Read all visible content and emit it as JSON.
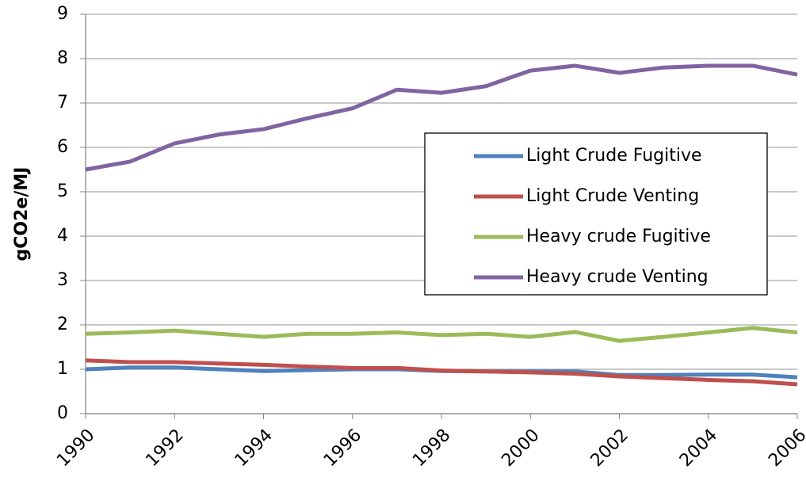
{
  "chart_data": {
    "type": "line",
    "y_label": "gCO2e/MJ",
    "x": [
      1990,
      1991,
      1992,
      1993,
      1994,
      1995,
      1996,
      1997,
      1998,
      1999,
      2000,
      2001,
      2002,
      2003,
      2004,
      2005,
      2006
    ],
    "xlim": [
      1990,
      2006
    ],
    "xticks": [
      1990,
      1992,
      1994,
      1996,
      1998,
      2000,
      2002,
      2004,
      2006
    ],
    "ylim": [
      0,
      9
    ],
    "yticks": [
      0,
      1,
      2,
      3,
      4,
      5,
      6,
      7,
      8,
      9
    ],
    "grid": true,
    "legend": "right",
    "series": [
      {
        "name": "Light Crude Fugitive",
        "color": "#4f81bd",
        "values": [
          1.0,
          1.04,
          1.04,
          1.0,
          0.96,
          0.98,
          1.0,
          1.0,
          0.96,
          0.95,
          0.95,
          0.95,
          0.87,
          0.87,
          0.88,
          0.88,
          0.82
        ]
      },
      {
        "name": "Light Crude Venting",
        "color": "#c0504d",
        "values": [
          1.2,
          1.16,
          1.16,
          1.13,
          1.1,
          1.06,
          1.03,
          1.03,
          0.97,
          0.95,
          0.93,
          0.9,
          0.84,
          0.8,
          0.76,
          0.73,
          0.66
        ]
      },
      {
        "name": "Heavy crude Fugitive",
        "color": "#9bbb59",
        "values": [
          1.8,
          1.83,
          1.87,
          1.8,
          1.73,
          1.8,
          1.8,
          1.83,
          1.77,
          1.8,
          1.73,
          1.84,
          1.64,
          1.73,
          1.83,
          1.93,
          1.83
        ]
      },
      {
        "name": "Heavy crude Venting",
        "color": "#8064a2",
        "values": [
          5.5,
          5.68,
          6.09,
          6.29,
          6.41,
          6.66,
          6.88,
          7.3,
          7.23,
          7.38,
          7.73,
          7.84,
          7.68,
          7.8,
          7.84,
          7.84,
          7.64
        ]
      }
    ]
  }
}
